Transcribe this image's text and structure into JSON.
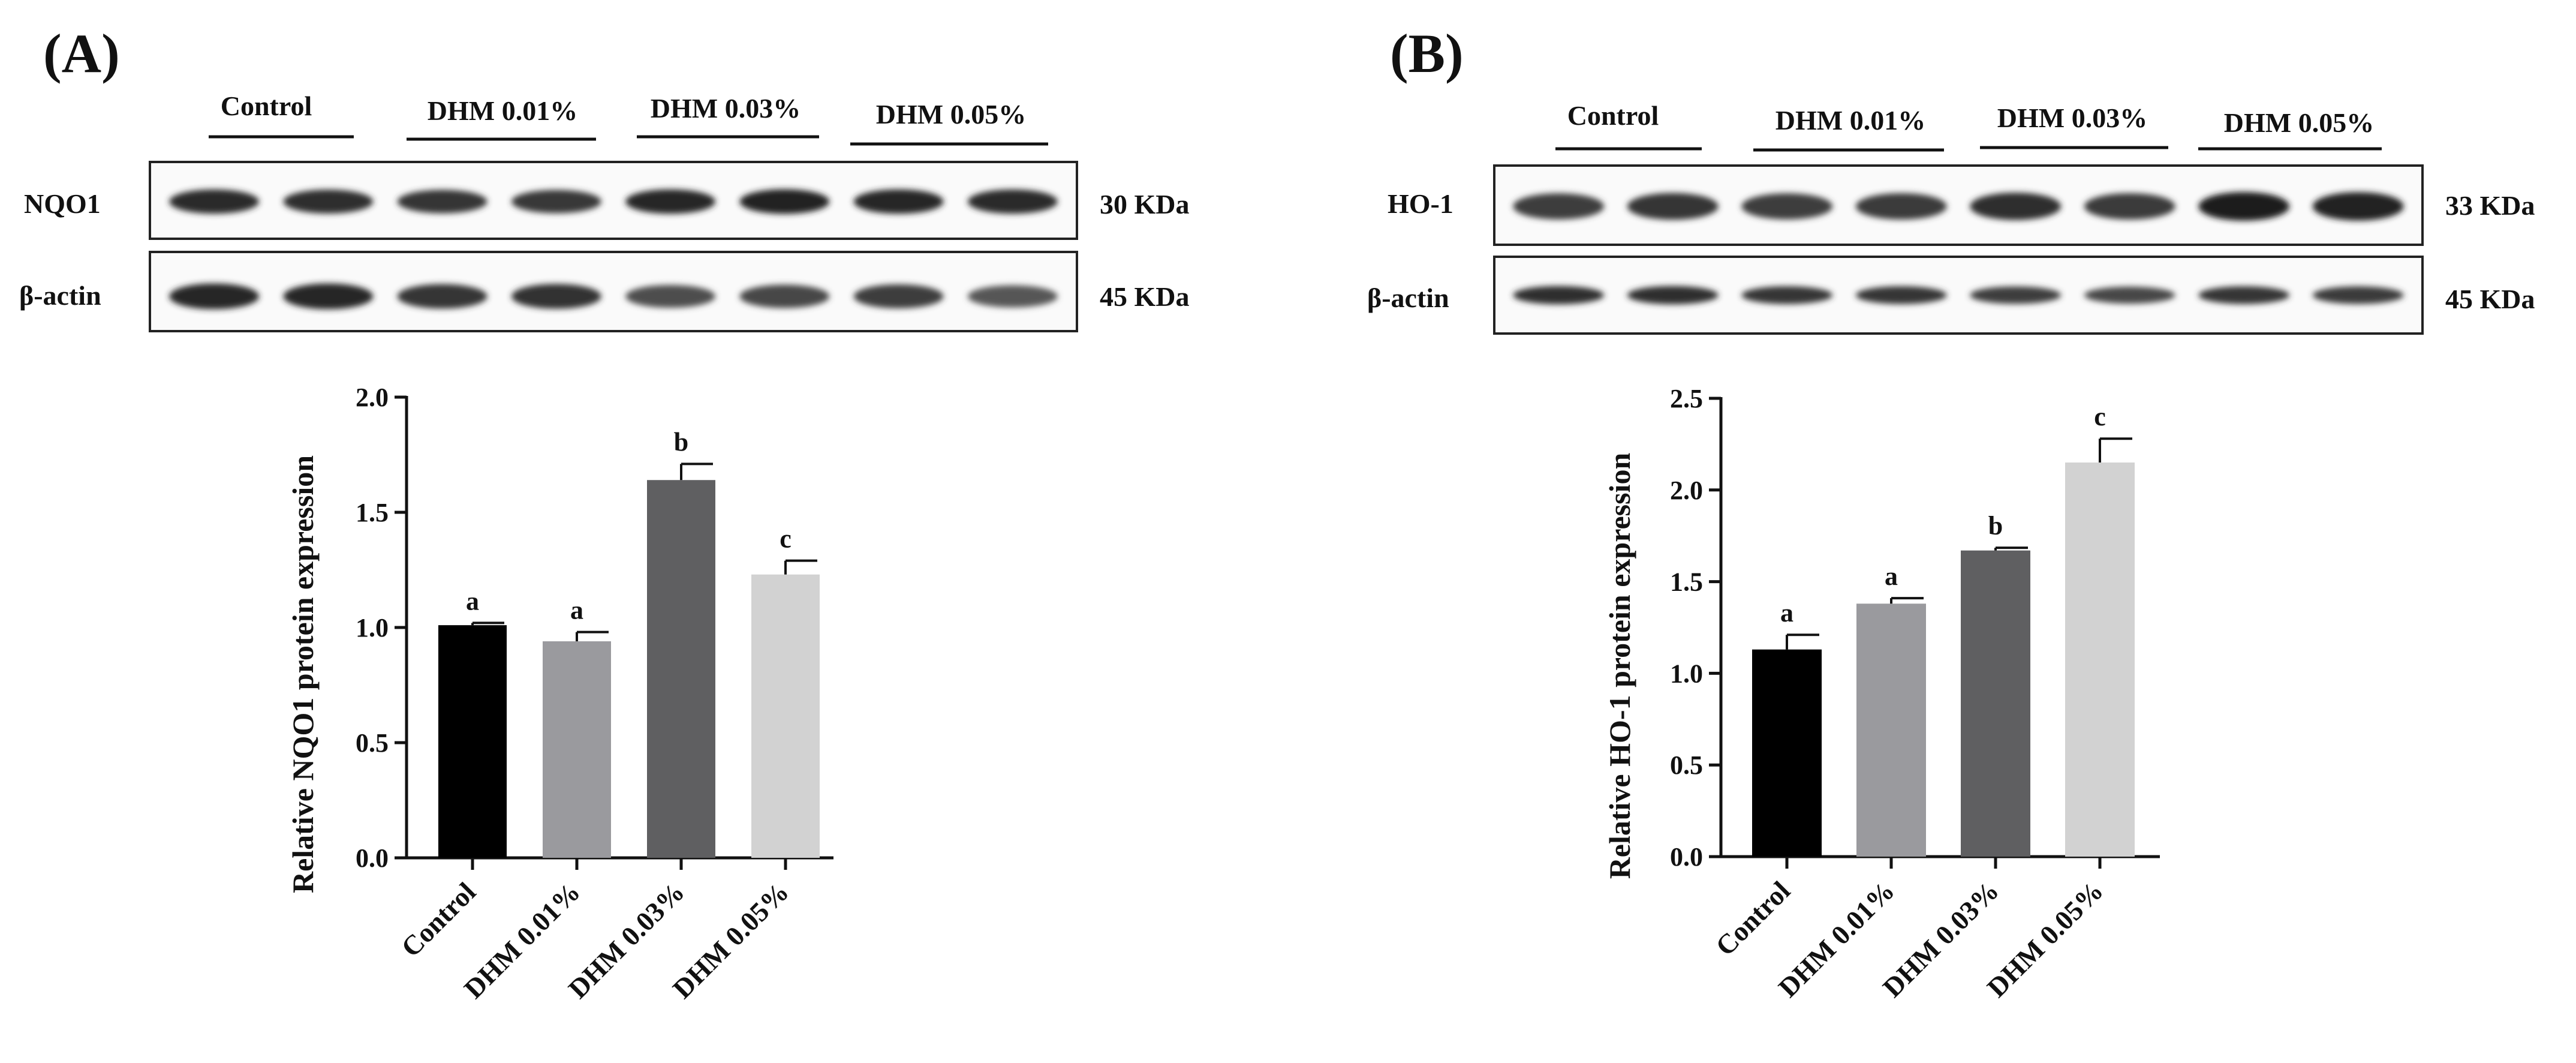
{
  "panels": [
    {
      "letter": "(A)",
      "blot": {
        "lane_groups": [
          "Control",
          "DHM 0.01%",
          "DHM 0.03%",
          "DHM 0.05%"
        ],
        "rows": [
          {
            "protein": "NQO1",
            "size": "30 KDa",
            "band_intensity": [
              0.92,
              0.9,
              0.86,
              0.84,
              0.94,
              0.96,
              0.94,
              0.92
            ]
          },
          {
            "protein": "β-actin",
            "size": "45 KDa",
            "band_intensity": [
              0.95,
              0.95,
              0.85,
              0.88,
              0.7,
              0.75,
              0.8,
              0.65
            ]
          }
        ]
      },
      "chart_data": {
        "type": "bar",
        "categories": [
          "Control",
          "DHM 0.01%",
          "DHM 0.03%",
          "DHM 0.05%"
        ],
        "values": [
          1.01,
          0.94,
          1.64,
          1.23
        ],
        "errors": [
          0.01,
          0.04,
          0.07,
          0.06
        ],
        "significance": [
          "a",
          "a",
          "b",
          "c"
        ],
        "ylabel": "Relative NQO1 protein expression",
        "ylim": [
          0,
          2.0
        ],
        "yticks": [
          "0.0",
          "0.5",
          "1.0",
          "1.5",
          "2.0"
        ],
        "colors": [
          "#000000",
          "#9a9a9e",
          "#5f5f61",
          "#d2d2d2"
        ]
      }
    },
    {
      "letter": "(B)",
      "blot": {
        "lane_groups": [
          "Control",
          "DHM 0.01%",
          "DHM 0.03%",
          "DHM 0.05%"
        ],
        "rows": [
          {
            "protein": "HO-1",
            "size": "33 KDa",
            "band_intensity": [
              0.8,
              0.85,
              0.8,
              0.82,
              0.9,
              0.82,
              1.0,
              0.98
            ]
          },
          {
            "protein": "β-actin",
            "size": "45 KDa",
            "band_intensity": [
              0.9,
              0.9,
              0.85,
              0.85,
              0.8,
              0.75,
              0.85,
              0.82
            ]
          }
        ]
      },
      "chart_data": {
        "type": "bar",
        "categories": [
          "Control",
          "DHM 0.01%",
          "DHM 0.03%",
          "DHM 0.05%"
        ],
        "values": [
          1.13,
          1.38,
          1.67,
          2.15
        ],
        "errors": [
          0.08,
          0.03,
          0.015,
          0.13
        ],
        "significance": [
          "a",
          "a",
          "b",
          "c"
        ],
        "ylabel": "Relative HO-1 protein expression",
        "ylim": [
          0,
          2.5
        ],
        "yticks": [
          "0.0",
          "0.5",
          "1.0",
          "1.5",
          "2.0",
          "2.5"
        ],
        "colors": [
          "#000000",
          "#9a9a9e",
          "#5f5f61",
          "#d2d2d2"
        ]
      }
    }
  ]
}
